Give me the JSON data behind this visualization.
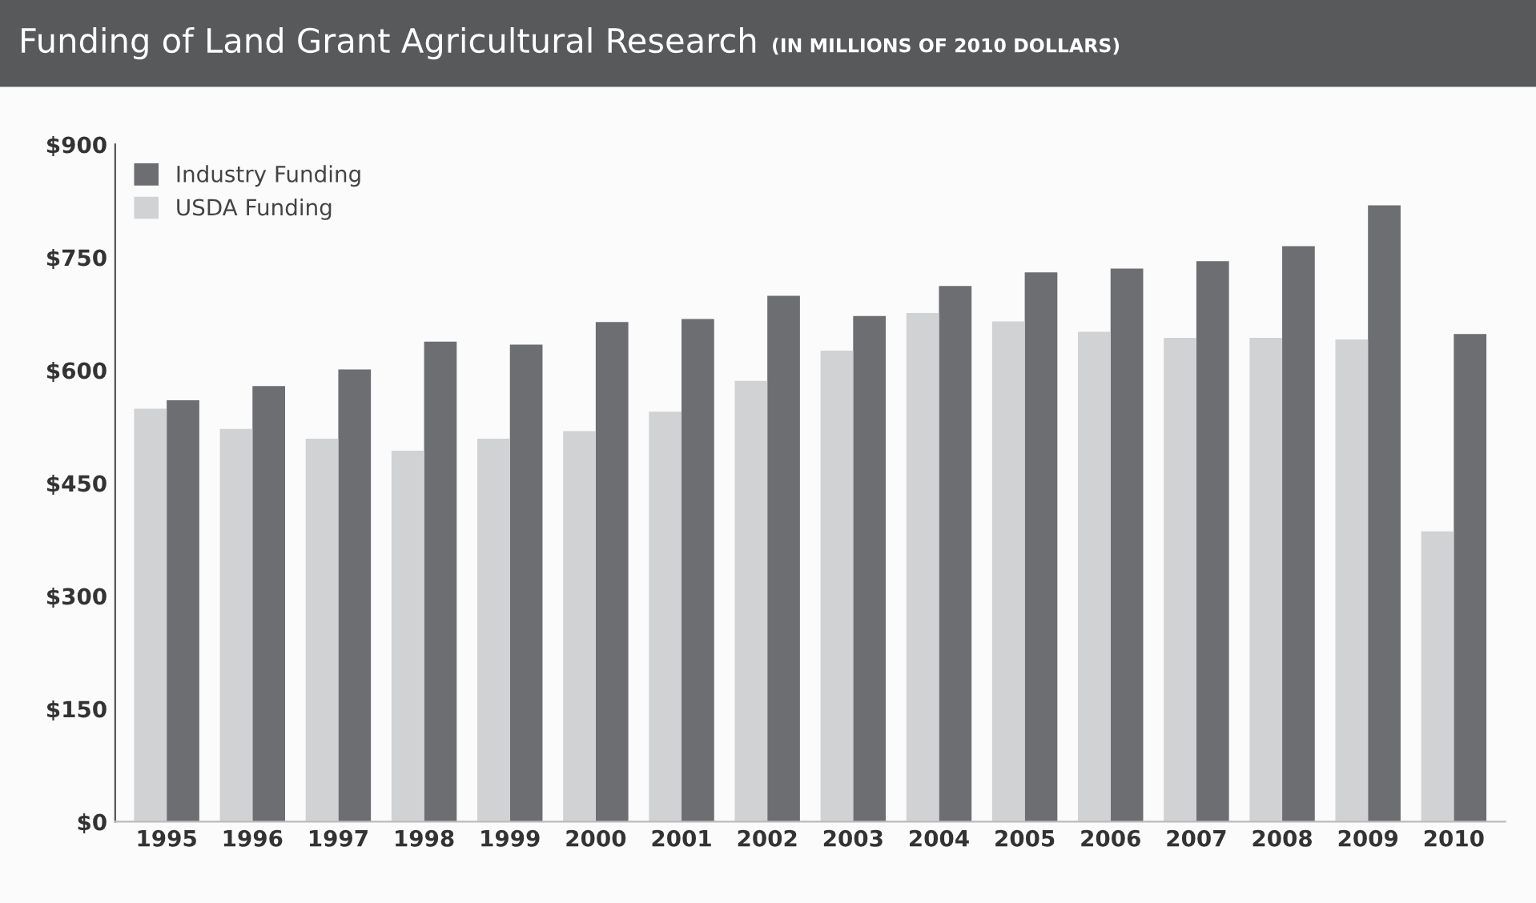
{
  "chart_data": {
    "type": "bar",
    "title": "Funding of Land Grant Agricultural Research",
    "subtitle": "(IN MILLIONS OF 2010 DOLLARS)",
    "categories": [
      "1995",
      "1996",
      "1997",
      "1998",
      "1999",
      "2000",
      "2001",
      "2002",
      "2003",
      "2004",
      "2005",
      "2006",
      "2007",
      "2008",
      "2009",
      "2010"
    ],
    "series": [
      {
        "name": "Industry Funding",
        "color": "#6d6e71",
        "values": [
          560,
          579,
          601,
          638,
          634,
          664,
          668,
          699,
          672,
          712,
          730,
          735,
          745,
          765,
          819,
          648
        ]
      },
      {
        "name": "USDA Funding",
        "color": "#d1d2d4",
        "values": [
          549,
          522,
          509,
          493,
          509,
          519,
          545,
          586,
          626,
          676,
          665,
          651,
          643,
          643,
          641,
          386
        ]
      }
    ],
    "ylim": [
      0,
      900
    ],
    "yticks": [
      {
        "value": 0,
        "label": "$0"
      },
      {
        "value": 150,
        "label": "$150"
      },
      {
        "value": 300,
        "label": "$300"
      },
      {
        "value": 450,
        "label": "$450"
      },
      {
        "value": 600,
        "label": "$600"
      },
      {
        "value": 750,
        "label": "$750"
      },
      {
        "value": 900,
        "label": "$900"
      }
    ],
    "grid": false,
    "legend": "top left"
  }
}
